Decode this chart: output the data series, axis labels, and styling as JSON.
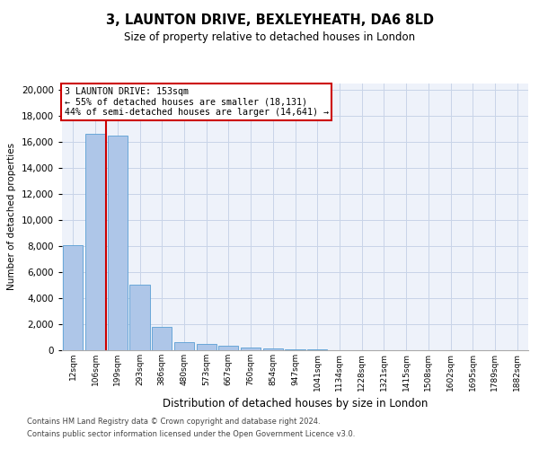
{
  "title1": "3, LAUNTON DRIVE, BEXLEYHEATH, DA6 8LD",
  "title2": "Size of property relative to detached houses in London",
  "xlabel": "Distribution of detached houses by size in London",
  "ylabel": "Number of detached properties",
  "categories": [
    "12sqm",
    "106sqm",
    "199sqm",
    "293sqm",
    "386sqm",
    "480sqm",
    "573sqm",
    "667sqm",
    "760sqm",
    "854sqm",
    "947sqm",
    "1041sqm",
    "1134sqm",
    "1228sqm",
    "1321sqm",
    "1415sqm",
    "1508sqm",
    "1602sqm",
    "1695sqm",
    "1789sqm",
    "1882sqm"
  ],
  "values": [
    8050,
    16600,
    16500,
    5000,
    1800,
    600,
    490,
    340,
    200,
    140,
    80,
    40,
    10,
    5,
    3,
    2,
    1,
    1,
    0,
    0,
    0
  ],
  "bar_color": "#aec6e8",
  "bar_edge_color": "#5a9fd4",
  "annotation_line1": "3 LAUNTON DRIVE: 153sqm",
  "annotation_line2": "← 55% of detached houses are smaller (18,131)",
  "annotation_line3": "44% of semi-detached houses are larger (14,641) →",
  "vline_x": 1.5,
  "vline_color": "#cc0000",
  "annotation_box_color": "#cc0000",
  "ylim": [
    0,
    20500
  ],
  "yticks": [
    0,
    2000,
    4000,
    6000,
    8000,
    10000,
    12000,
    14000,
    16000,
    18000,
    20000
  ],
  "footer1": "Contains HM Land Registry data © Crown copyright and database right 2024.",
  "footer2": "Contains public sector information licensed under the Open Government Licence v3.0.",
  "grid_color": "#c8d4e8",
  "bg_color": "#eef2fa"
}
